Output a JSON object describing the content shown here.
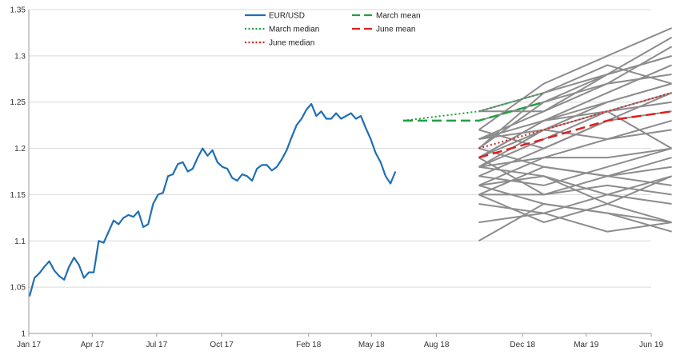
{
  "chart_data": {
    "type": "line",
    "title": "",
    "xlabel": "",
    "ylabel": "",
    "ylim": [
      1.0,
      1.35
    ],
    "yticks": [
      1,
      1.05,
      1.1,
      1.15,
      1.2,
      1.25,
      1.3,
      1.35
    ],
    "ytick_labels": [
      "1",
      "1.05",
      "1.1",
      "1.15",
      "1.2",
      "1.25",
      "1.3",
      "1.35"
    ],
    "x_start": "2017-01-01",
    "x_end": "2019-06-01",
    "xticks": [
      "2017-01-01",
      "2017-04-01",
      "2017-07-01",
      "2017-10-01",
      "2018-02-01",
      "2018-05-01",
      "2018-08-01",
      "2018-12-01",
      "2019-03-01",
      "2019-06-01"
    ],
    "xtick_labels": [
      "Jan 17",
      "Apr 17",
      "Jul 17",
      "Oct 17",
      "Feb 18",
      "May 18",
      "Aug 18",
      "Dec 18",
      "Mar 19",
      "Jun 19"
    ],
    "grid": "horizontal",
    "legend_position": "top-center",
    "colors": {
      "eurusd": "#1F6FB4",
      "march": "#20A040",
      "june": "#DD2020",
      "forecast": "#8C8C8C",
      "grid": "#D9D9D9",
      "axis": "#999999"
    },
    "series": [
      {
        "name": "EUR/USD",
        "style": "solid",
        "x": [
          "2017-01-02",
          "2017-01-09",
          "2017-01-16",
          "2017-01-23",
          "2017-01-30",
          "2017-02-06",
          "2017-02-13",
          "2017-02-20",
          "2017-02-27",
          "2017-03-06",
          "2017-03-13",
          "2017-03-20",
          "2017-03-27",
          "2017-04-03",
          "2017-04-10",
          "2017-04-17",
          "2017-04-24",
          "2017-05-01",
          "2017-05-08",
          "2017-05-15",
          "2017-05-22",
          "2017-05-29",
          "2017-06-05",
          "2017-06-12",
          "2017-06-19",
          "2017-06-26",
          "2017-07-03",
          "2017-07-10",
          "2017-07-17",
          "2017-07-24",
          "2017-07-31",
          "2017-08-07",
          "2017-08-14",
          "2017-08-21",
          "2017-08-28",
          "2017-09-04",
          "2017-09-11",
          "2017-09-18",
          "2017-09-25",
          "2017-10-02",
          "2017-10-09",
          "2017-10-16",
          "2017-10-23",
          "2017-10-30",
          "2017-11-06",
          "2017-11-13",
          "2017-11-20",
          "2017-11-27",
          "2017-12-04",
          "2017-12-11",
          "2017-12-18",
          "2017-12-25",
          "2018-01-01",
          "2018-01-08",
          "2018-01-15",
          "2018-01-22",
          "2018-01-29",
          "2018-02-05",
          "2018-02-12",
          "2018-02-19",
          "2018-02-26",
          "2018-03-05",
          "2018-03-12",
          "2018-03-19",
          "2018-03-26",
          "2018-04-02",
          "2018-04-09",
          "2018-04-16",
          "2018-04-23",
          "2018-04-30",
          "2018-05-07",
          "2018-05-14",
          "2018-05-21",
          "2018-05-28",
          "2018-06-04"
        ],
        "values": [
          1.04,
          1.06,
          1.065,
          1.072,
          1.078,
          1.068,
          1.062,
          1.058,
          1.072,
          1.082,
          1.074,
          1.06,
          1.066,
          1.066,
          1.1,
          1.098,
          1.11,
          1.122,
          1.118,
          1.125,
          1.128,
          1.126,
          1.132,
          1.115,
          1.118,
          1.14,
          1.15,
          1.152,
          1.17,
          1.172,
          1.183,
          1.185,
          1.175,
          1.178,
          1.19,
          1.2,
          1.192,
          1.198,
          1.185,
          1.18,
          1.178,
          1.168,
          1.165,
          1.172,
          1.17,
          1.165,
          1.178,
          1.182,
          1.182,
          1.176,
          1.18,
          1.188,
          1.198,
          1.212,
          1.225,
          1.232,
          1.242,
          1.248,
          1.235,
          1.24,
          1.232,
          1.232,
          1.238,
          1.232,
          1.235,
          1.238,
          1.232,
          1.235,
          1.222,
          1.21,
          1.195,
          1.185,
          1.17,
          1.162,
          1.175
        ]
      },
      {
        "name": "March mean",
        "style": "dashed",
        "x": [
          "2018-06-15",
          "2018-09-30",
          "2018-12-31"
        ],
        "values": [
          1.23,
          1.23,
          1.25
        ]
      },
      {
        "name": "March median",
        "style": "dotted",
        "x": [
          "2018-06-15",
          "2018-09-30",
          "2018-12-31"
        ],
        "values": [
          1.23,
          1.24,
          1.26
        ]
      },
      {
        "name": "June mean",
        "style": "dashed",
        "x": [
          "2018-09-30",
          "2018-12-31",
          "2019-03-31",
          "2019-06-30"
        ],
        "values": [
          1.19,
          1.21,
          1.23,
          1.24
        ]
      },
      {
        "name": "June median",
        "style": "dotted",
        "x": [
          "2018-09-30",
          "2018-12-31",
          "2019-03-31",
          "2019-06-30"
        ],
        "values": [
          1.2,
          1.22,
          1.24,
          1.26
        ]
      }
    ],
    "forecast_paths": {
      "x": [
        "2018-09-30",
        "2018-12-31",
        "2019-03-31",
        "2019-06-30"
      ],
      "paths": [
        [
          1.24,
          1.26,
          1.28,
          1.3
        ],
        [
          1.23,
          1.25,
          1.28,
          1.32
        ],
        [
          1.22,
          1.27,
          1.3,
          1.33
        ],
        [
          1.21,
          1.24,
          1.27,
          1.31
        ],
        [
          1.2,
          1.26,
          1.29,
          1.27
        ],
        [
          1.19,
          1.23,
          1.26,
          1.29
        ],
        [
          1.18,
          1.22,
          1.25,
          1.27
        ],
        [
          1.22,
          1.2,
          1.23,
          1.26
        ],
        [
          1.2,
          1.25,
          1.27,
          1.28
        ],
        [
          1.19,
          1.23,
          1.25,
          1.27
        ],
        [
          1.21,
          1.23,
          1.24,
          1.25
        ],
        [
          1.18,
          1.21,
          1.24,
          1.26
        ],
        [
          1.17,
          1.2,
          1.23,
          1.24
        ],
        [
          1.19,
          1.22,
          1.21,
          1.22
        ],
        [
          1.16,
          1.19,
          1.21,
          1.23
        ],
        [
          1.18,
          1.19,
          1.19,
          1.2
        ],
        [
          1.17,
          1.16,
          1.18,
          1.2
        ],
        [
          1.15,
          1.18,
          1.17,
          1.19
        ],
        [
          1.2,
          1.18,
          1.17,
          1.18
        ],
        [
          1.16,
          1.17,
          1.15,
          1.17
        ],
        [
          1.19,
          1.15,
          1.17,
          1.16
        ],
        [
          1.15,
          1.15,
          1.16,
          1.15
        ],
        [
          1.14,
          1.13,
          1.15,
          1.14
        ],
        [
          1.16,
          1.14,
          1.13,
          1.12
        ],
        [
          1.15,
          1.12,
          1.14,
          1.12
        ],
        [
          1.1,
          1.14,
          1.13,
          1.11
        ],
        [
          1.12,
          1.13,
          1.11,
          1.12
        ],
        [
          1.18,
          1.17,
          1.14,
          1.17
        ],
        [
          1.24,
          1.24,
          1.28,
          1.3
        ],
        [
          1.21,
          1.22,
          1.24,
          1.2
        ]
      ]
    },
    "legend": [
      {
        "label": "EUR/USD",
        "key": "eurusd",
        "style": "solid"
      },
      {
        "label": "March mean",
        "key": "march",
        "style": "dashed"
      },
      {
        "label": "March median",
        "key": "march",
        "style": "dotted"
      },
      {
        "label": "June mean",
        "key": "june",
        "style": "dashed"
      },
      {
        "label": "June median",
        "key": "june",
        "style": "dotted"
      }
    ]
  }
}
